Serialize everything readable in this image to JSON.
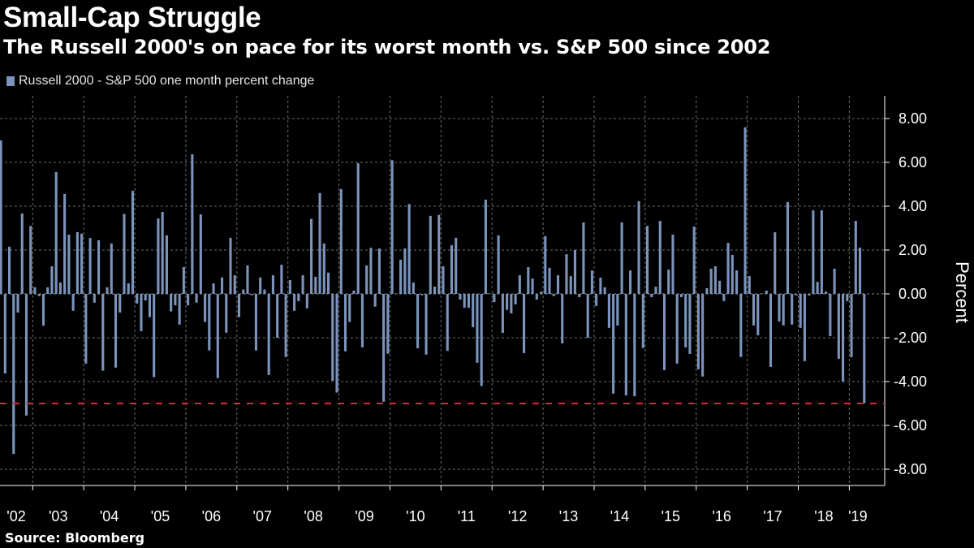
{
  "title": "Small-Cap Struggle",
  "subtitle": "The Russell 2000's on pace for its worst month vs. S&P 500 since 2002",
  "source": "Source: Bloomberg",
  "colors": {
    "bar": "#7c94bc",
    "reference_line": "#e8203a",
    "grid": "#6e6e6e"
  },
  "chart_data": {
    "type": "bar",
    "title": "The Russell 2000's on pace for its worst month vs. S&P 500 since 2002",
    "legend": [
      "Russell 2000 - S&P 500 one month percent change"
    ],
    "legend_position": "top-left",
    "ylabel": "Percent",
    "ylim": [
      -9,
      9
    ],
    "yticks": [
      8,
      6,
      4,
      2,
      0,
      -2,
      -4,
      -6,
      -8
    ],
    "ytick_labels": [
      "8.00",
      "6.00",
      "4.00",
      "2.00",
      "0.00",
      "-2.00",
      "-4.00",
      "-6.00",
      "-8.00"
    ],
    "grid": true,
    "start_month": "2002-05",
    "frequency": "monthly",
    "xtick_labels": [
      "'02",
      "'03",
      "'04",
      "'05",
      "'06",
      "'07",
      "'08",
      "'09",
      "'10",
      "'11",
      "'12",
      "'13",
      "'14",
      "'15",
      "'16",
      "'17",
      "'18",
      "'19"
    ],
    "reference_line": -5.0,
    "series": [
      {
        "name": "Russell 2000 - S&P 500 one month percent change",
        "values": [
          7.0,
          -3.63,
          2.15,
          -7.3,
          -0.85,
          3.67,
          -5.55,
          3.1,
          0.3,
          -0.1,
          -1.45,
          0.3,
          1.26,
          5.56,
          0.52,
          4.56,
          2.7,
          -0.77,
          2.82,
          2.75,
          -3.18,
          2.55,
          -0.4,
          2.45,
          -3.5,
          0.3,
          2.3,
          -3.36,
          -0.85,
          3.65,
          0.48,
          4.7,
          -0.44,
          -1.7,
          -0.3,
          -1.06,
          -3.8,
          3.44,
          3.74,
          2.67,
          -0.8,
          -0.52,
          -1.4,
          1.22,
          -0.52,
          6.37,
          -0.4,
          3.63,
          -1.28,
          -2.58,
          0.48,
          -3.84,
          0.75,
          -1.77,
          2.56,
          0.85,
          -1.06,
          0.2,
          1.3,
          -0.06,
          -2.58,
          0.75,
          0.2,
          -3.7,
          0.85,
          -2.0,
          1.33,
          -2.88,
          0.63,
          -0.77,
          -0.33,
          0.85,
          -0.66,
          3.42,
          0.78,
          4.6,
          2.3,
          0.97,
          -3.96,
          -4.5,
          4.78,
          -2.62,
          -1.28,
          0.15,
          5.96,
          -2.44,
          1.3,
          2.1,
          -0.58,
          2.07,
          -4.92,
          -2.73,
          6.1,
          0.02,
          1.56,
          2.07,
          4.1,
          0.52,
          -2.48,
          -0.06,
          -2.77,
          3.56,
          0.33,
          3.6,
          1.26,
          -2.6,
          2.22,
          2.56,
          -0.26,
          -0.63,
          -0.63,
          -1.52,
          -3.14,
          -4.2,
          4.3,
          0.02,
          -0.37,
          2.67,
          -1.78,
          -0.73,
          -0.89,
          -0.48,
          0.85,
          -2.7,
          1.22,
          0.7,
          -0.26,
          0.1,
          2.63,
          1.19,
          -0.1,
          0.85,
          -2.26,
          1.81,
          0.81,
          2.0,
          -0.15,
          3.26,
          -2.0,
          1.07,
          -0.55,
          0.74,
          0.3,
          -1.55,
          -4.55,
          -1.44,
          3.26,
          -4.63,
          1.07,
          -4.67,
          4.23,
          -2.47,
          3.1,
          -0.15,
          0.33,
          3.33,
          -3.48,
          1.11,
          2.7,
          -3.18,
          -0.15,
          -2.44,
          -2.74,
          3.07,
          -3.44,
          -3.77,
          0.26,
          1.15,
          1.26,
          0.6,
          -0.33,
          2.33,
          1.78,
          1.07,
          -2.88,
          7.6,
          0.81,
          -1.44,
          -1.89,
          0.02,
          0.15,
          -3.33,
          2.81,
          -1.26,
          -1.44,
          4.19,
          -1.4,
          -0.07,
          -1.55,
          -3.07,
          -0.07,
          3.81,
          0.55,
          3.81,
          0.11,
          -1.93,
          1.15,
          -2.96,
          -4.0,
          -0.33,
          -2.89,
          3.33,
          2.11,
          -4.99
        ]
      }
    ]
  }
}
